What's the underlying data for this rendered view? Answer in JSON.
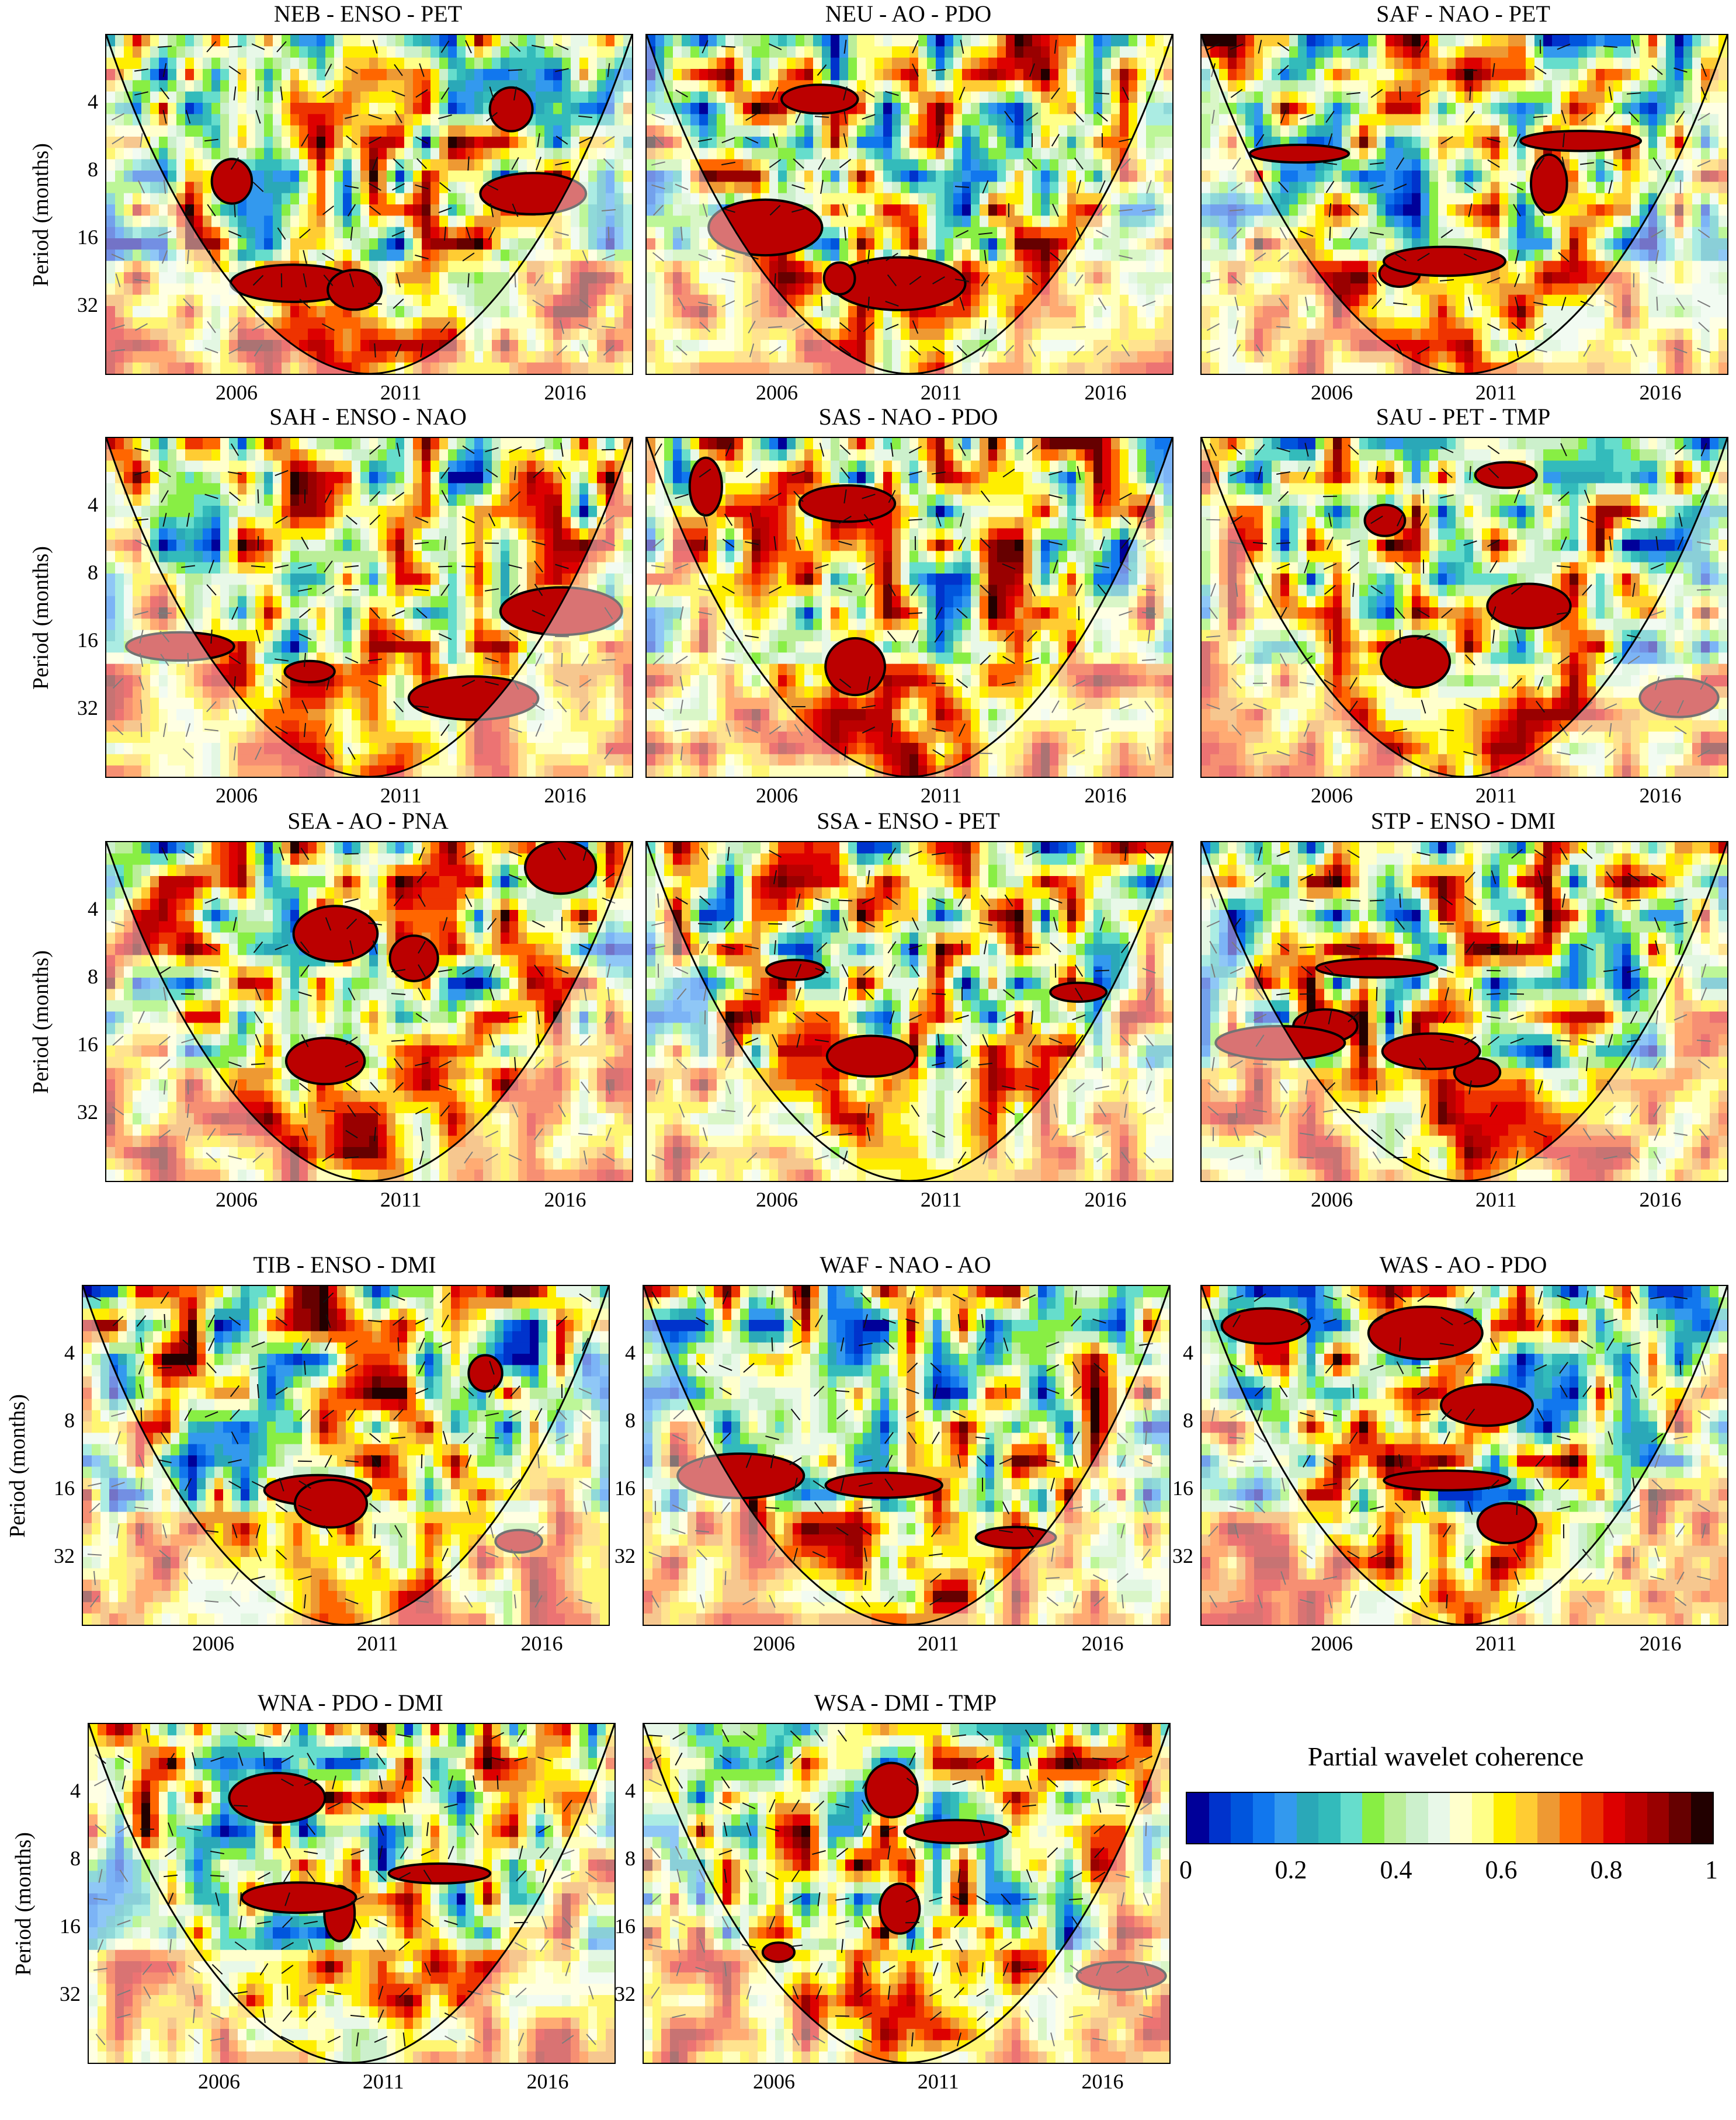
{
  "figure": {
    "ylabel": "Period (months)",
    "legend_title": "Partial wavelet coherence",
    "legend_ticks": [
      "0",
      "0.2",
      "0.4",
      "0.6",
      "0.8",
      "1"
    ],
    "colormap": [
      "#000099",
      "#0033cc",
      "#0055dd",
      "#1177ee",
      "#3399ee",
      "#2aa8b8",
      "#33bbbb",
      "#66ddcc",
      "#88ee44",
      "#bbee99",
      "#ccf0cc",
      "#e8f8e8",
      "#ffffcc",
      "#ffff88",
      "#ffee00",
      "#ffcc33",
      "#ee9933",
      "#ff6600",
      "#ee3300",
      "#dd0000",
      "#bb0000",
      "#990000",
      "#660000",
      "#220000"
    ]
  },
  "chart_data": [
    {
      "type": "heatmap",
      "title": "NEB - ENSO - PET",
      "ylabel": "Period (months)",
      "yticks": [
        "4",
        "8",
        "16",
        "32"
      ],
      "xticks": [
        "2006",
        "2011",
        "2016"
      ],
      "ylim": [
        2,
        64
      ],
      "xlim": [
        2002,
        2018
      ],
      "value_range": [
        0,
        1
      ]
    },
    {
      "type": "heatmap",
      "title": "NEU - AO - PDO",
      "ylabel": "",
      "yticks": [],
      "xticks": [
        "2006",
        "2011",
        "2016"
      ],
      "ylim": [
        2,
        64
      ],
      "xlim": [
        2002,
        2018
      ],
      "value_range": [
        0,
        1
      ]
    },
    {
      "type": "heatmap",
      "title": "SAF - NAO - PET",
      "ylabel": "",
      "yticks": [],
      "xticks": [
        "2006",
        "2011",
        "2016"
      ],
      "ylim": [
        2,
        64
      ],
      "xlim": [
        2002,
        2018
      ],
      "value_range": [
        0,
        1
      ]
    },
    {
      "type": "heatmap",
      "title": "SAH - ENSO - NAO",
      "ylabel": "Period (months)",
      "yticks": [
        "4",
        "8",
        "16",
        "32"
      ],
      "xticks": [
        "2006",
        "2011",
        "2016"
      ],
      "ylim": [
        2,
        64
      ],
      "xlim": [
        2002,
        2018
      ],
      "value_range": [
        0,
        1
      ]
    },
    {
      "type": "heatmap",
      "title": "SAS - NAO - PDO",
      "ylabel": "",
      "yticks": [],
      "xticks": [
        "2006",
        "2011",
        "2016"
      ],
      "ylim": [
        2,
        64
      ],
      "xlim": [
        2002,
        2018
      ],
      "value_range": [
        0,
        1
      ]
    },
    {
      "type": "heatmap",
      "title": "SAU - PET - TMP",
      "ylabel": "",
      "yticks": [],
      "xticks": [
        "2006",
        "2011",
        "2016"
      ],
      "ylim": [
        2,
        64
      ],
      "xlim": [
        2002,
        2018
      ],
      "value_range": [
        0,
        1
      ]
    },
    {
      "type": "heatmap",
      "title": "SEA - AO - PNA",
      "ylabel": "Period (months)",
      "yticks": [
        "4",
        "8",
        "16",
        "32"
      ],
      "xticks": [
        "2006",
        "2011",
        "2016"
      ],
      "ylim": [
        2,
        64
      ],
      "xlim": [
        2002,
        2018
      ],
      "value_range": [
        0,
        1
      ]
    },
    {
      "type": "heatmap",
      "title": "SSA - ENSO - PET",
      "ylabel": "",
      "yticks": [],
      "xticks": [
        "2006",
        "2011",
        "2016"
      ],
      "ylim": [
        2,
        64
      ],
      "xlim": [
        2002,
        2018
      ],
      "value_range": [
        0,
        1
      ]
    },
    {
      "type": "heatmap",
      "title": "STP - ENSO - DMI",
      "ylabel": "",
      "yticks": [],
      "xticks": [
        "2006",
        "2011",
        "2016"
      ],
      "ylim": [
        2,
        64
      ],
      "xlim": [
        2002,
        2018
      ],
      "value_range": [
        0,
        1
      ]
    },
    {
      "type": "heatmap",
      "title": "TIB - ENSO - DMI",
      "ylabel": "Period (months)",
      "yticks": [
        "4",
        "8",
        "16",
        "32"
      ],
      "xticks": [
        "2006",
        "2011",
        "2016"
      ],
      "ylim": [
        2,
        64
      ],
      "xlim": [
        2002,
        2018
      ],
      "value_range": [
        0,
        1
      ]
    },
    {
      "type": "heatmap",
      "title": "WAF - NAO - AO",
      "ylabel": "",
      "yticks": [
        "4",
        "8",
        "16",
        "32"
      ],
      "xticks": [
        "2006",
        "2011",
        "2016"
      ],
      "ylim": [
        2,
        64
      ],
      "xlim": [
        2002,
        2018
      ],
      "value_range": [
        0,
        1
      ]
    },
    {
      "type": "heatmap",
      "title": "WAS - AO - PDO",
      "ylabel": "",
      "yticks": [
        "4",
        "8",
        "16",
        "32"
      ],
      "xticks": [
        "2006",
        "2011",
        "2016"
      ],
      "ylim": [
        2,
        64
      ],
      "xlim": [
        2002,
        2018
      ],
      "value_range": [
        0,
        1
      ]
    },
    {
      "type": "heatmap",
      "title": "WNA - PDO - DMI",
      "ylabel": "Period (months)",
      "yticks": [
        "4",
        "8",
        "16",
        "32"
      ],
      "xticks": [
        "2006",
        "2011",
        "2016"
      ],
      "ylim": [
        2,
        64
      ],
      "xlim": [
        2002,
        2018
      ],
      "value_range": [
        0,
        1
      ]
    },
    {
      "type": "heatmap",
      "title": "WSA - DMI - TMP",
      "ylabel": "",
      "yticks": [
        "4",
        "8",
        "16",
        "32"
      ],
      "xticks": [
        "2006",
        "2011",
        "2016"
      ],
      "ylim": [
        2,
        64
      ],
      "xlim": [
        2002,
        2018
      ],
      "value_range": [
        0,
        1
      ]
    }
  ]
}
